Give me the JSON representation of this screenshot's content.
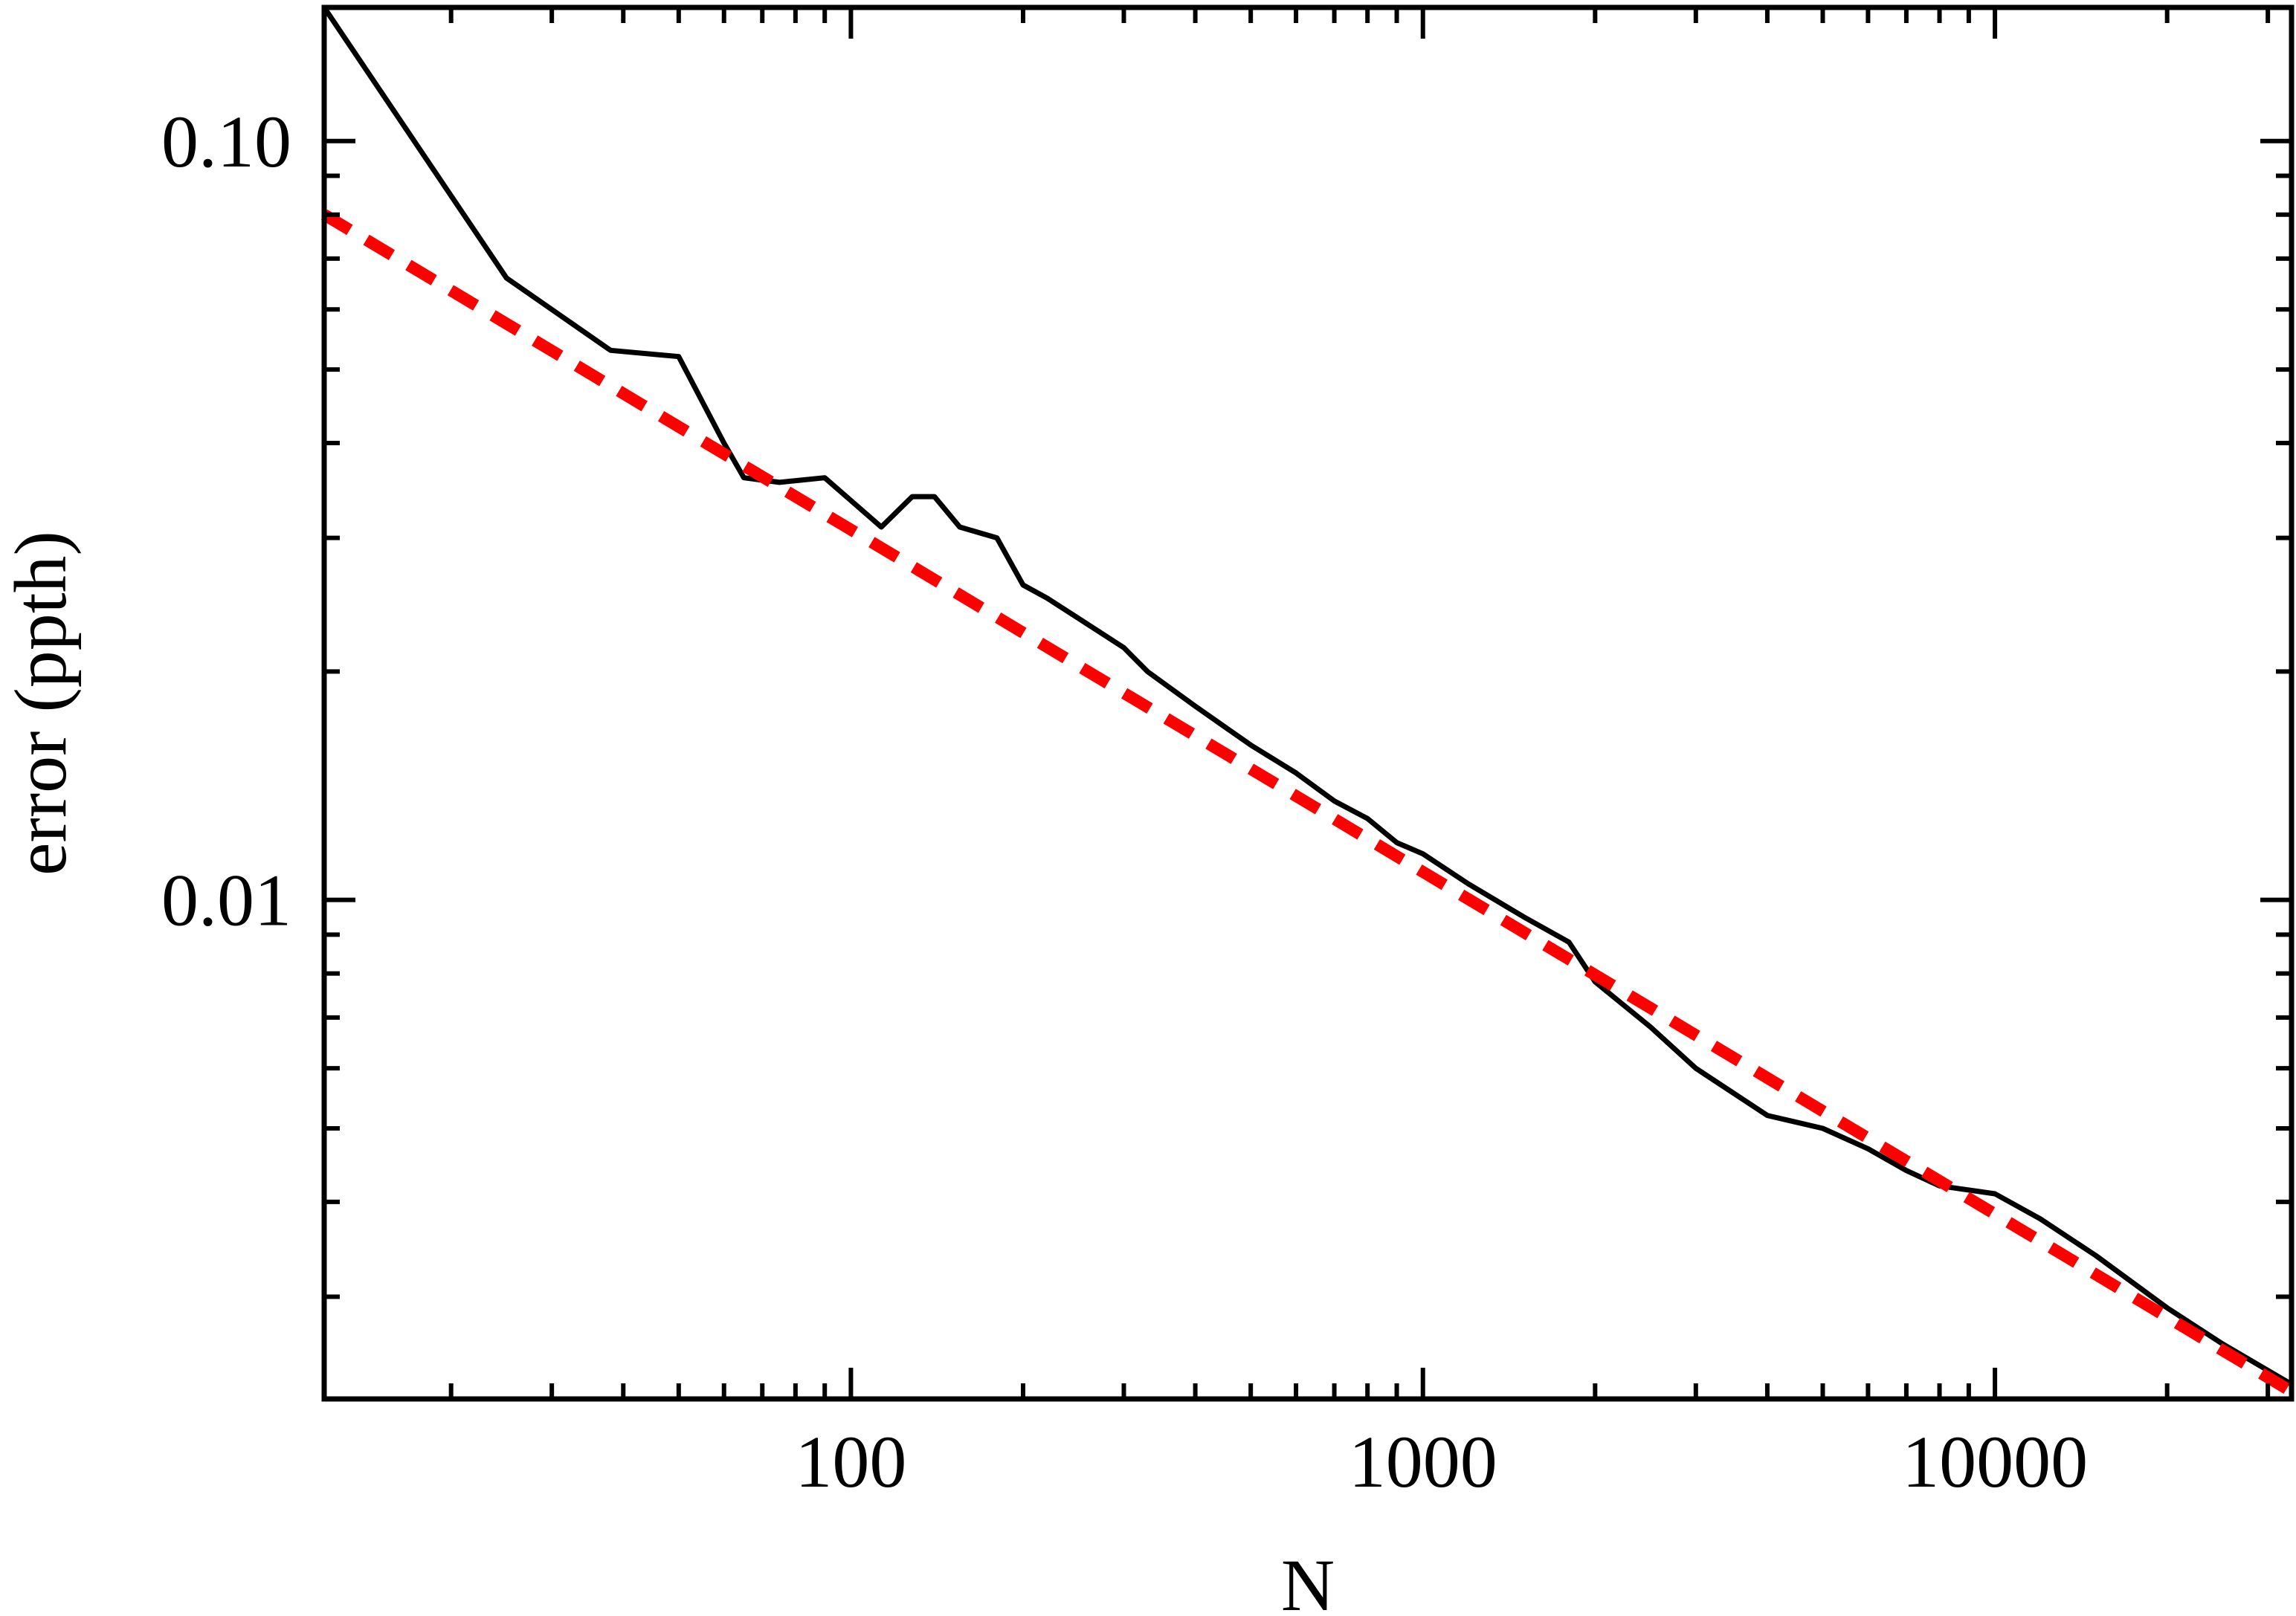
{
  "chart_data": {
    "type": "line",
    "title": "",
    "xlabel": "N",
    "ylabel": "error (ppth)",
    "x_scale": "log",
    "y_scale": "log",
    "xlim": [
      12,
      33000
    ],
    "ylim": [
      0.0022,
      0.15
    ],
    "grid": false,
    "legend": "none",
    "x_ticks": [
      {
        "value": 100,
        "label": "100"
      },
      {
        "value": 1000,
        "label": "1000"
      },
      {
        "value": 10000,
        "label": "10000"
      }
    ],
    "y_ticks": [
      {
        "value": 0.1,
        "label": "0.10"
      },
      {
        "value": 0.01,
        "label": "0.01"
      }
    ],
    "series": [
      {
        "style": "solid",
        "color": "#000000",
        "points": [
          [
            12,
            0.15
          ],
          [
            25,
            0.066
          ],
          [
            38,
            0.053
          ],
          [
            50,
            0.052
          ],
          [
            60,
            0.04
          ],
          [
            65,
            0.036
          ],
          [
            75,
            0.0355
          ],
          [
            90,
            0.036
          ],
          [
            113,
            0.031
          ],
          [
            128,
            0.034
          ],
          [
            140,
            0.034
          ],
          [
            155,
            0.031
          ],
          [
            180,
            0.03
          ],
          [
            200,
            0.026
          ],
          [
            220,
            0.025
          ],
          [
            250,
            0.0235
          ],
          [
            300,
            0.0215
          ],
          [
            330,
            0.02
          ],
          [
            400,
            0.018
          ],
          [
            500,
            0.016
          ],
          [
            600,
            0.0147
          ],
          [
            700,
            0.0135
          ],
          [
            800,
            0.0128
          ],
          [
            900,
            0.0119
          ],
          [
            1000,
            0.0115
          ],
          [
            1200,
            0.0105
          ],
          [
            1500,
            0.0095
          ],
          [
            1800,
            0.0088
          ],
          [
            2000,
            0.0078
          ],
          [
            2500,
            0.0068
          ],
          [
            3000,
            0.006
          ],
          [
            4000,
            0.0052
          ],
          [
            5000,
            0.005
          ],
          [
            6000,
            0.0047
          ],
          [
            7000,
            0.0044
          ],
          [
            8000,
            0.0042
          ],
          [
            10000,
            0.0041
          ],
          [
            12000,
            0.0038
          ],
          [
            15000,
            0.0034
          ],
          [
            20000,
            0.0029
          ],
          [
            25000,
            0.0026
          ],
          [
            33000,
            0.0023
          ]
        ]
      },
      {
        "style": "dashed",
        "color": "#ff0000",
        "points": [
          [
            12,
            0.08
          ],
          [
            33000,
            0.00225
          ]
        ]
      }
    ]
  }
}
